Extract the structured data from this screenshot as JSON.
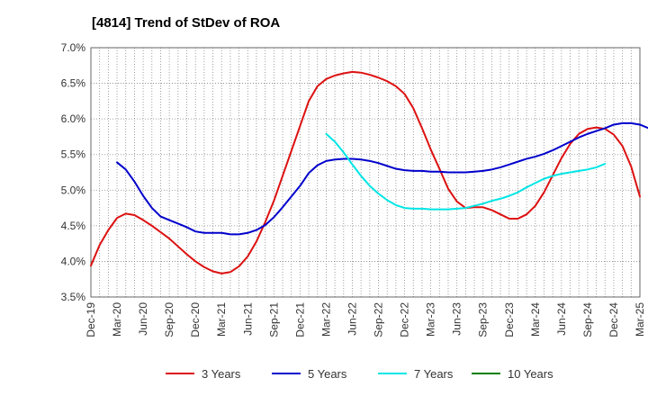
{
  "chart_data": {
    "type": "line",
    "title": "[4814]  Trend of StDev of ROA",
    "xlabel": "",
    "ylabel": "",
    "x_ticks": [
      "Dec-19",
      "Mar-20",
      "Jun-20",
      "Sep-20",
      "Dec-20",
      "Mar-21",
      "Jun-21",
      "Sep-21",
      "Dec-21",
      "Mar-22",
      "Jun-22",
      "Sep-22",
      "Dec-22",
      "Mar-23",
      "Jun-23",
      "Sep-23",
      "Dec-23",
      "Mar-24",
      "Jun-24",
      "Sep-24",
      "Dec-24",
      "Mar-25"
    ],
    "y_ticks": [
      "3.5%",
      "4.0%",
      "4.5%",
      "5.0%",
      "5.5%",
      "6.0%",
      "6.5%",
      "7.0%"
    ],
    "ylim": [
      3.5,
      7.0
    ],
    "grid": true,
    "legend_position": "bottom",
    "series": [
      {
        "name": "3 Years",
        "color": "#dd1111",
        "start_index": 0,
        "values": [
          3.94,
          4.23,
          4.44,
          4.61,
          4.67,
          4.65,
          4.58,
          4.5,
          4.41,
          4.32,
          4.21,
          4.1,
          4.0,
          3.92,
          3.86,
          3.83,
          3.85,
          3.93,
          4.07,
          4.28,
          4.55,
          4.85,
          5.2,
          5.55,
          5.9,
          6.25,
          6.46,
          6.56,
          6.61,
          6.64,
          6.66,
          6.65,
          6.62,
          6.58,
          6.53,
          6.46,
          6.35,
          6.15,
          5.87,
          5.57,
          5.3,
          5.02,
          4.84,
          4.75,
          4.76,
          4.76,
          4.72,
          4.66,
          4.6,
          4.6,
          4.66,
          4.78,
          4.97,
          5.21,
          5.45,
          5.65,
          5.79,
          5.86,
          5.88,
          5.86,
          5.78,
          5.62,
          5.33,
          4.91
        ]
      },
      {
        "name": "5 Years",
        "color": "#0000cc",
        "start_index": 3,
        "values": [
          5.39,
          5.29,
          5.12,
          4.92,
          4.75,
          4.63,
          4.58,
          4.53,
          4.48,
          4.42,
          4.4,
          4.4,
          4.4,
          4.38,
          4.38,
          4.4,
          4.44,
          4.51,
          4.62,
          4.76,
          4.91,
          5.06,
          5.24,
          5.35,
          5.41,
          5.43,
          5.44,
          5.44,
          5.43,
          5.41,
          5.38,
          5.34,
          5.3,
          5.28,
          5.27,
          5.27,
          5.26,
          5.26,
          5.25,
          5.25,
          5.25,
          5.26,
          5.27,
          5.29,
          5.32,
          5.36,
          5.4,
          5.44,
          5.47,
          5.51,
          5.56,
          5.62,
          5.68,
          5.74,
          5.79,
          5.83,
          5.87,
          5.92,
          5.94,
          5.94,
          5.92,
          5.87
        ]
      },
      {
        "name": "7 Years",
        "color": "#00e5e5",
        "start_index": 27,
        "values": [
          5.79,
          5.68,
          5.53,
          5.36,
          5.2,
          5.06,
          4.95,
          4.86,
          4.79,
          4.75,
          4.74,
          4.74,
          4.73,
          4.73,
          4.73,
          4.74,
          4.75,
          4.78,
          4.81,
          4.85,
          4.88,
          4.92,
          4.97,
          5.04,
          5.1,
          5.16,
          5.2,
          5.23,
          5.25,
          5.27,
          5.29,
          5.32,
          5.37
        ]
      },
      {
        "name": "10 Years",
        "color": "#008000",
        "start_index": 0,
        "values": []
      }
    ]
  }
}
